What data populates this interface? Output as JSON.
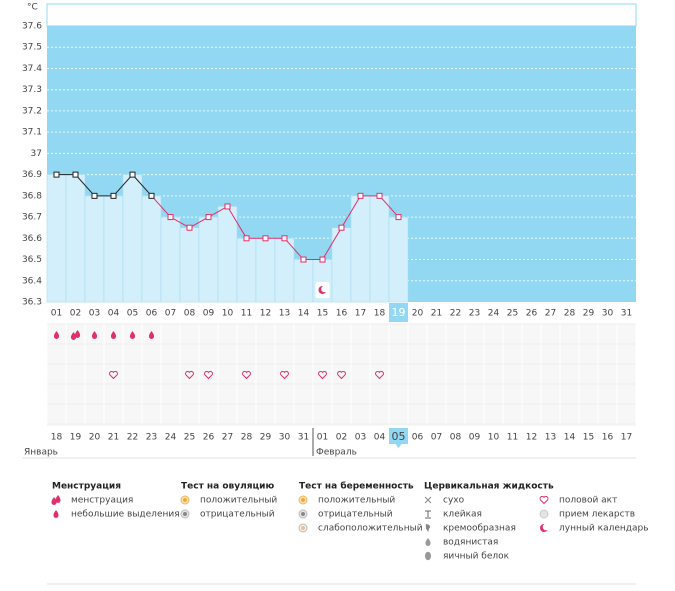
{
  "chart_data": {
    "type": "line",
    "y_label": "°C",
    "categories": [
      "01",
      "02",
      "03",
      "04",
      "05",
      "06",
      "07",
      "08",
      "09",
      "10",
      "11",
      "12",
      "13",
      "14",
      "15",
      "16",
      "17",
      "18",
      "19",
      "20",
      "21",
      "22",
      "23",
      "24",
      "25",
      "26",
      "27",
      "28",
      "29",
      "30",
      "31"
    ],
    "series": [
      {
        "color": "#e0306a",
        "values": [
          36.9,
          36.9,
          36.8,
          36.8,
          36.9,
          36.8,
          36.7,
          36.65,
          36.7,
          36.75,
          36.6,
          36.6,
          36.6,
          36.5,
          36.5,
          36.65,
          36.8,
          36.8,
          36.7,
          null,
          null,
          null,
          null,
          null,
          null,
          null,
          null,
          null,
          null,
          null,
          null
        ],
        "point_colors": [
          "#222",
          "#222",
          "#222",
          "#222",
          "#222",
          "#222",
          "#e0306a",
          "#e0306a",
          "#e0306a",
          "#e0306a",
          "#e0306a",
          "#e0306a",
          "#e0306a",
          "#e0306a",
          "#e0306a",
          "#e0306a",
          "#e0306a",
          "#e0306a",
          "#e0306a",
          null,
          null,
          null,
          null,
          null,
          null,
          null,
          null,
          null,
          null,
          null,
          null
        ]
      }
    ],
    "ylim": [
      36.3,
      37.6
    ],
    "yticks": [
      36.3,
      36.4,
      36.5,
      36.6,
      36.7,
      36.8,
      36.9,
      37,
      37.1,
      37.2,
      37.3,
      37.4,
      37.5,
      37.6
    ],
    "grid": true,
    "background_color": "#93d8f3",
    "bar_color": "#d3effb",
    "current_index": 18,
    "moon_index": 14,
    "menstruation": [
      "light",
      "heavy",
      "light",
      "light",
      "light",
      "light",
      null,
      null,
      null,
      null,
      null,
      null,
      null,
      null,
      null,
      null,
      null,
      null,
      null,
      null,
      null,
      null,
      null,
      null,
      null,
      null,
      null,
      null,
      null,
      null,
      null
    ],
    "intercourse": [
      false,
      false,
      false,
      true,
      false,
      false,
      false,
      true,
      true,
      false,
      true,
      false,
      true,
      false,
      true,
      true,
      false,
      true,
      false,
      false,
      false,
      false,
      false,
      false,
      false,
      false,
      false,
      false,
      false,
      false,
      false
    ],
    "dates": [
      "18",
      "19",
      "20",
      "21",
      "22",
      "23",
      "24",
      "25",
      "26",
      "27",
      "28",
      "29",
      "30",
      "31",
      "01",
      "02",
      "03",
      "04",
      "05",
      "06",
      "07",
      "08",
      "09",
      "10",
      "11",
      "12",
      "13",
      "14",
      "15",
      "16",
      "17"
    ],
    "date_colors": [
      "#444",
      "#444",
      "#444",
      "#e0306a",
      "#e0306a",
      "#444",
      "#444",
      "#444",
      "#444",
      "#444",
      "#e0306a",
      "#e0306a",
      "#444",
      "#444",
      "#444",
      "#444",
      "#444",
      "#e0306a",
      "#fff",
      "#444",
      "#444",
      "#444",
      "#444",
      "#444",
      "#e0306a",
      "#e0306a",
      "#444",
      "#444",
      "#444",
      "#444",
      "#444"
    ],
    "months": [
      {
        "label": "Январь",
        "index": 0
      },
      {
        "label": "Февраль",
        "index": 14
      }
    ],
    "legend": [
      {
        "title": "Менструация",
        "items": [
          {
            "label": "менструация",
            "icon": "heavy"
          },
          {
            "label": "небольшие выделения",
            "icon": "light"
          }
        ]
      },
      {
        "title": "Тест на овуляцию",
        "items": [
          {
            "label": "положительный",
            "icon": "pos"
          },
          {
            "label": "отрицательный",
            "icon": "neg"
          }
        ]
      },
      {
        "title": "Тест на беременность",
        "items": [
          {
            "label": "положительный",
            "icon": "pos"
          },
          {
            "label": "отрицательный",
            "icon": "neg"
          },
          {
            "label": "слабоположительный",
            "icon": "weak"
          }
        ]
      },
      {
        "title": "Цервикальная жидкость",
        "items": [
          {
            "label": "сухо",
            "icon": "cross"
          },
          {
            "label": "клейкая",
            "icon": "t"
          },
          {
            "label": "кремообразная",
            "icon": "cream"
          },
          {
            "label": "водянистая",
            "icon": "water"
          },
          {
            "label": "яичный белок",
            "icon": "egg"
          }
        ]
      },
      {
        "items": [
          {
            "label": "половой акт",
            "icon": "heart"
          },
          {
            "label": "прием лекарств",
            "icon": "pill"
          },
          {
            "label": "лунный календарь",
            "icon": "moon"
          }
        ]
      }
    ]
  }
}
